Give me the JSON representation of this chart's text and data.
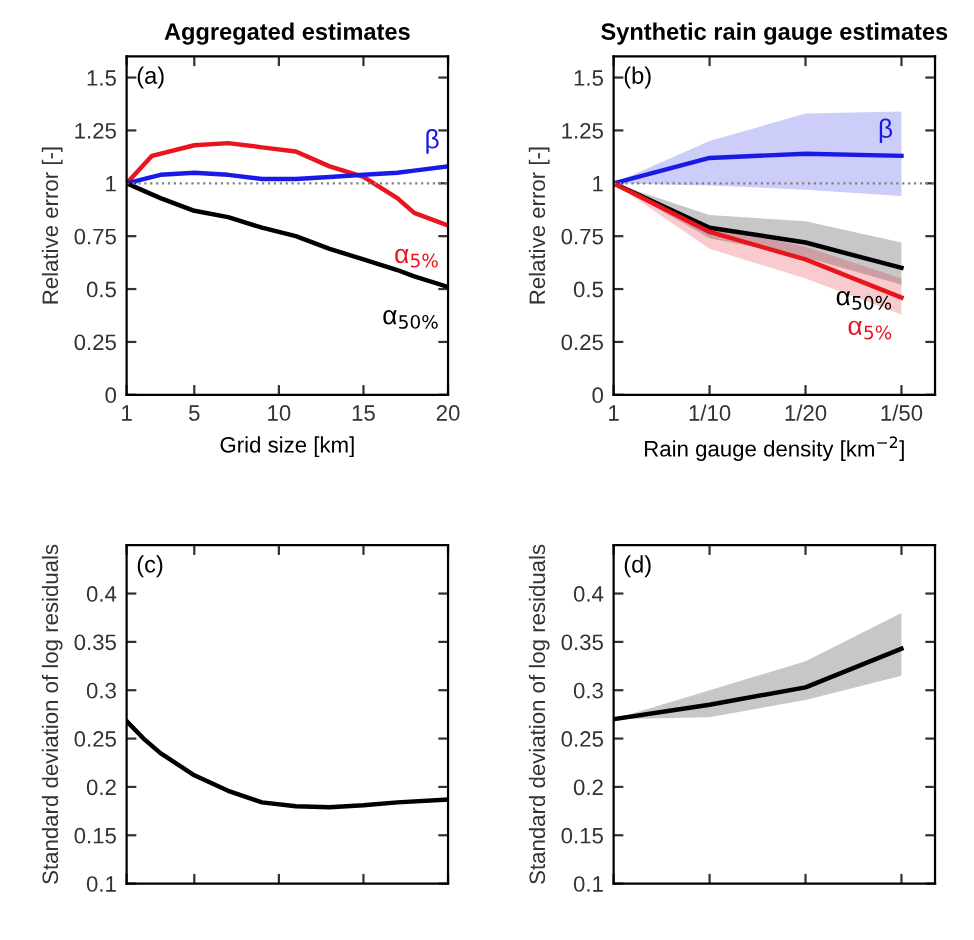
{
  "chart_data": [
    {
      "type": "line",
      "title": "Aggregated estimates",
      "xlabel": "Grid size [km]",
      "ylabel": "Relative error [-]",
      "xlim": [
        1,
        20
      ],
      "xticks": [
        1,
        5,
        10,
        15,
        20
      ],
      "ylim": [
        0,
        1.6
      ],
      "yticks": [
        0,
        0.25,
        0.5,
        0.75,
        1,
        1.25,
        1.5
      ],
      "grid": false,
      "legend": false,
      "x": [
        1,
        3,
        5,
        7,
        9,
        11,
        13,
        15,
        17,
        18,
        20
      ],
      "series": [
        {
          "name": "α$_{5%}$",
          "color": "#e8141e",
          "x": [
            1,
            2.5,
            5,
            7,
            9,
            11,
            13,
            15,
            17,
            18,
            20
          ],
          "values": [
            1,
            1.13,
            1.18,
            1.19,
            1.17,
            1.15,
            1.08,
            1.03,
            0.93,
            0.86,
            0.8
          ]
        },
        {
          "name": "β",
          "color": "#1a1ae6",
          "values": [
            1,
            1.04,
            1.05,
            1.04,
            1.02,
            1.02,
            1.03,
            1.04,
            1.05,
            1.06,
            1.08
          ]
        },
        {
          "name": "α$_{50%}$",
          "color": "#000000",
          "values": [
            1,
            0.93,
            0.87,
            0.84,
            0.79,
            0.75,
            0.69,
            0.64,
            0.59,
            0.56,
            0.51
          ]
        }
      ],
      "ref_lines": [
        {
          "axis": "y",
          "value": 1,
          "color": "#808080",
          "line_style": "dotted"
        }
      ],
      "annotations": [
        "(a)"
      ]
    },
    {
      "type": "line",
      "title": "Synthetic rain gauge estimates",
      "xlabel": "Rain gauge density [km$^{−2}$]",
      "ylabel": "Relative error [-]",
      "ylim": [
        0,
        1.6
      ],
      "yticks": [
        0,
        0.25,
        0.5,
        0.75,
        1,
        1.25,
        1.5
      ],
      "grid": false,
      "legend": false,
      "categories": [
        "1",
        "1/10",
        "1/20",
        "1/50"
      ],
      "series": [
        {
          "name": "β",
          "color": "#1a1ae6",
          "values": [
            1,
            1.12,
            1.14,
            1.13
          ],
          "lower": [
            1,
            0.99,
            0.97,
            0.94
          ],
          "upper": [
            1,
            1.2,
            1.33,
            1.34
          ]
        },
        {
          "name": "α$_{50%}$",
          "color": "#000000",
          "values": [
            1,
            0.79,
            0.72,
            0.6
          ],
          "lower": [
            1,
            0.74,
            0.65,
            0.52
          ],
          "upper": [
            1,
            0.85,
            0.82,
            0.72
          ]
        },
        {
          "name": "α$_{5%}$",
          "color": "#e8141e",
          "values": [
            1,
            0.77,
            0.64,
            0.46
          ],
          "lower": [
            1,
            0.69,
            0.55,
            0.38
          ],
          "upper": [
            1,
            0.8,
            0.7,
            0.55
          ]
        }
      ],
      "ref_lines": [
        {
          "axis": "y",
          "value": 1,
          "color": "#808080",
          "line_style": "dotted"
        }
      ],
      "annotations": [
        "(b)"
      ]
    },
    {
      "type": "line",
      "ylabel": "Standard deviation of log residuals",
      "xlim": [
        1,
        20
      ],
      "xticks": [
        1,
        5,
        10,
        15,
        20
      ],
      "ylim": [
        0.1,
        0.45
      ],
      "yticks": [
        0.1,
        0.15,
        0.2,
        0.25,
        0.3,
        0.35,
        0.4
      ],
      "grid": false,
      "legend": false,
      "tick_labels": "y",
      "x": [
        1,
        2,
        3,
        5,
        7,
        9,
        11,
        13,
        15,
        17,
        20
      ],
      "series": [
        {
          "color": "#000000",
          "values": [
            0.268,
            0.25,
            0.235,
            0.212,
            0.196,
            0.184,
            0.18,
            0.179,
            0.181,
            0.184,
            0.187
          ]
        }
      ],
      "annotations": [
        "(c)"
      ]
    },
    {
      "type": "line",
      "ylabel": "Standard deviation of log residuals",
      "ylim": [
        0.1,
        0.45
      ],
      "yticks": [
        0.1,
        0.15,
        0.2,
        0.25,
        0.3,
        0.35,
        0.4
      ],
      "grid": false,
      "legend": false,
      "tick_labels": "y",
      "categories": [
        null,
        null,
        null,
        null
      ],
      "series": [
        {
          "color": "#000000",
          "values": [
            0.27,
            0.285,
            0.303,
            0.343
          ],
          "lower": [
            0.27,
            0.272,
            0.29,
            0.315
          ],
          "upper": [
            0.27,
            0.3,
            0.33,
            0.38
          ]
        }
      ],
      "annotations": [
        "(d)"
      ]
    }
  ]
}
